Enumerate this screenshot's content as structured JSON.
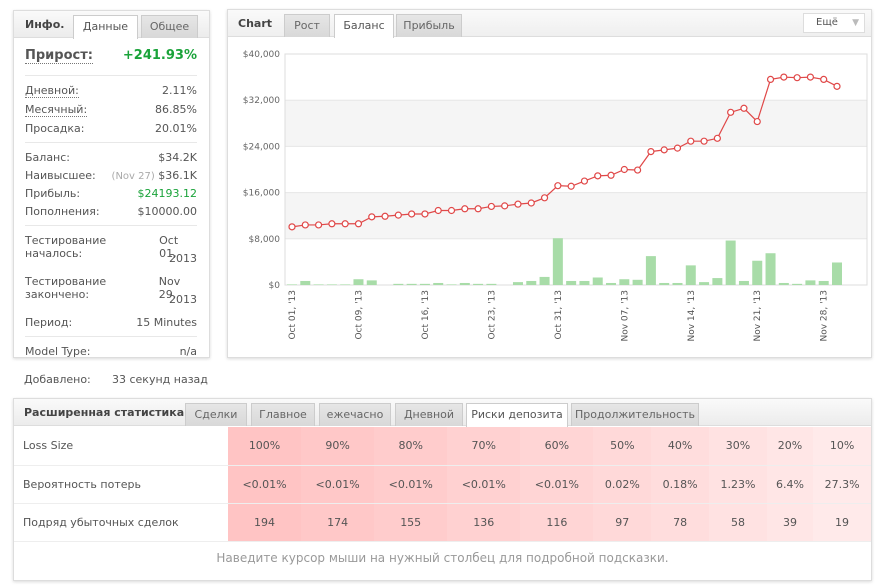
{
  "info": {
    "title": "Инфо.",
    "tabs": [
      {
        "label": "Данные",
        "active": true
      },
      {
        "label": "Общее",
        "active": false
      }
    ],
    "gain_label": "Прирост:",
    "gain_value": "+241.93%",
    "daily_label": "Дневной:",
    "daily_value": "2.11%",
    "monthly_label": "Месячный:",
    "monthly_value": "86.85%",
    "drawdown_label": "Просадка:",
    "drawdown_value": "20.01%",
    "balance_label": "Баланс:",
    "balance_value": "$34.2K",
    "highest_label": "Наивысшее:",
    "highest_date": "(Nov 27)",
    "highest_value": "$36.1K",
    "profit_label": "Прибыль:",
    "profit_value": "$24193.12",
    "deposits_label": "Пополнения:",
    "deposits_value": "$10000.00",
    "start_label": "Тестирование началось:",
    "start_value_1": "Oct 01,",
    "start_value_2": "2013",
    "end_label": "Тестирование закончено:",
    "end_value_1": "Nov 29,",
    "end_value_2": "2013",
    "period_label": "Период:",
    "period_value": "15 Minutes",
    "model_label": "Model Type:",
    "model_value": "n/a",
    "green": "#1aa33a"
  },
  "added": {
    "label": "Добавлено:",
    "value": "33 секунд назад"
  },
  "chart_panel": {
    "title": "Chart",
    "tabs": [
      {
        "label": "Рост",
        "active": false
      },
      {
        "label": "Баланс",
        "active": true
      },
      {
        "label": "Прибыль",
        "active": false
      }
    ],
    "more_label": "Ещё"
  },
  "chart_data": {
    "type": "line",
    "ylim": [
      0,
      40000
    ],
    "yticks": [
      "$0",
      "$8,000",
      "$16,000",
      "$24,000",
      "$32,000",
      "$40,000"
    ],
    "ytick_values": [
      0,
      8000,
      16000,
      24000,
      32000,
      40000
    ],
    "xtick_labels": [
      "Oct 01, '13",
      "Oct 09, '13",
      "Oct 16, '13",
      "Oct 23, '13",
      "Oct 31, '13",
      "Nov 07, '13",
      "Nov 14, '13",
      "Nov 21, '13",
      "Nov 28, '13"
    ],
    "xtick_every": 5,
    "balance": [
      10070,
      10400,
      10400,
      10600,
      10600,
      10600,
      11800,
      11900,
      12100,
      12300,
      12300,
      12900,
      12900,
      13200,
      13200,
      13600,
      13700,
      14000,
      14200,
      15100,
      17200,
      17100,
      18000,
      18900,
      19000,
      20000,
      19900,
      23100,
      23400,
      23700,
      24900,
      24900,
      25400,
      29900,
      30600,
      28300,
      35600,
      36000,
      35900,
      36000,
      35600,
      34400
    ],
    "bars": [
      100,
      700,
      100,
      100,
      100,
      1000,
      800,
      0,
      200,
      200,
      200,
      350,
      100,
      350,
      200,
      200,
      0,
      500,
      700,
      1400,
      8100,
      700,
      700,
      1300,
      350,
      1000,
      900,
      5000,
      350,
      350,
      3400,
      500,
      1200,
      7700,
      700,
      4200,
      5500,
      350,
      200,
      800,
      700,
      3900
    ],
    "line_color": "#e04848",
    "bar_color": "#a8dca8",
    "grid": true
  },
  "stats": {
    "title": "Расширенная статистика",
    "tabs": [
      {
        "label": "Сделки",
        "active": false
      },
      {
        "label": "Главное",
        "active": false
      },
      {
        "label": "ежечасно",
        "active": false
      },
      {
        "label": "Дневной",
        "active": false
      },
      {
        "label": "Риски депозита",
        "active": true
      },
      {
        "label": "Продолжительность",
        "active": false
      }
    ],
    "rows": [
      {
        "label": "Loss Size",
        "values": [
          "100%",
          "90%",
          "80%",
          "70%",
          "60%",
          "50%",
          "40%",
          "30%",
          "20%",
          "10%"
        ]
      },
      {
        "label": "Вероятность потерь",
        "values": [
          "<0.01%",
          "<0.01%",
          "<0.01%",
          "<0.01%",
          "<0.01%",
          "0.02%",
          "0.18%",
          "1.23%",
          "6.4%",
          "27.3%"
        ]
      },
      {
        "label": "Подряд убыточных сделок",
        "values": [
          "194",
          "174",
          "155",
          "136",
          "116",
          "97",
          "78",
          "58",
          "39",
          "19"
        ]
      }
    ],
    "hint": "Наведите курсор мыши на нужный столбец для подробной подсказки."
  }
}
